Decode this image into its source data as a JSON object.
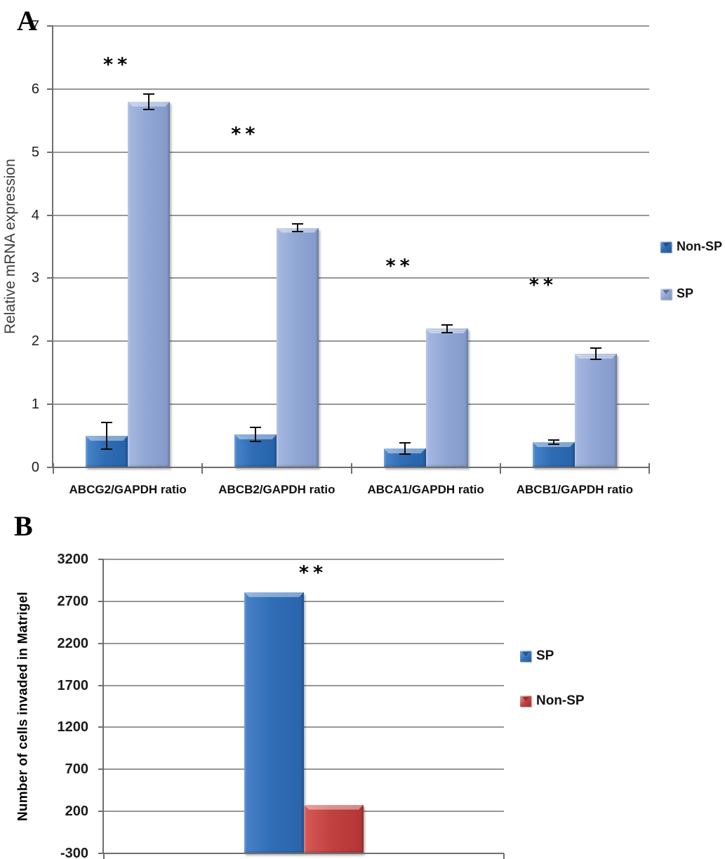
{
  "chart_data": [
    {
      "panel_label": "A",
      "type": "bar",
      "title": "",
      "xlabel": "",
      "ylabel": "Relative mRNA expression",
      "ylim": [
        0,
        7
      ],
      "yticks": [
        7,
        6,
        5,
        4,
        3,
        2,
        1,
        0
      ],
      "grid": true,
      "legend_position": "right",
      "categories": [
        "ABCG2/GAPDH ratio",
        "ABCB2/GAPDH ratio",
        "ABCA1/GAPDH ratio",
        "ABCB1/GAPDH ratio"
      ],
      "series": [
        {
          "name": "Non-SP",
          "color": "#2E6CB4",
          "values": [
            0.5,
            0.52,
            0.3,
            0.4
          ],
          "errors": [
            0.22,
            0.12,
            0.1,
            0.04
          ]
        },
        {
          "name": "SP",
          "color": "#8FA5D2",
          "values": [
            5.8,
            3.8,
            2.2,
            1.8
          ],
          "errors": [
            0.13,
            0.07,
            0.07,
            0.1
          ]
        }
      ],
      "significance": [
        {
          "text": "**",
          "at_value": 6.4
        },
        {
          "text": "**",
          "at_value": 5.3
        },
        {
          "text": "**",
          "at_value": 3.2
        },
        {
          "text": "**",
          "at_value": 2.9
        }
      ]
    },
    {
      "panel_label": "B",
      "type": "bar",
      "title": "",
      "xlabel": "",
      "ylabel": "Number of cells invaded in Matrigel",
      "ylim": [
        -300,
        3200
      ],
      "yticks": [
        3200,
        2700,
        2200,
        1700,
        1200,
        700,
        200,
        -300
      ],
      "grid": true,
      "legend_position": "right",
      "categories": [
        ""
      ],
      "series": [
        {
          "name": "SP",
          "color": "#2F6DB6",
          "values": [
            2810
          ]
        },
        {
          "name": "Non-SP",
          "color": "#C23E3E",
          "values": [
            280
          ]
        }
      ],
      "significance": [
        {
          "text": "**",
          "at_value": 3050
        }
      ]
    }
  ]
}
